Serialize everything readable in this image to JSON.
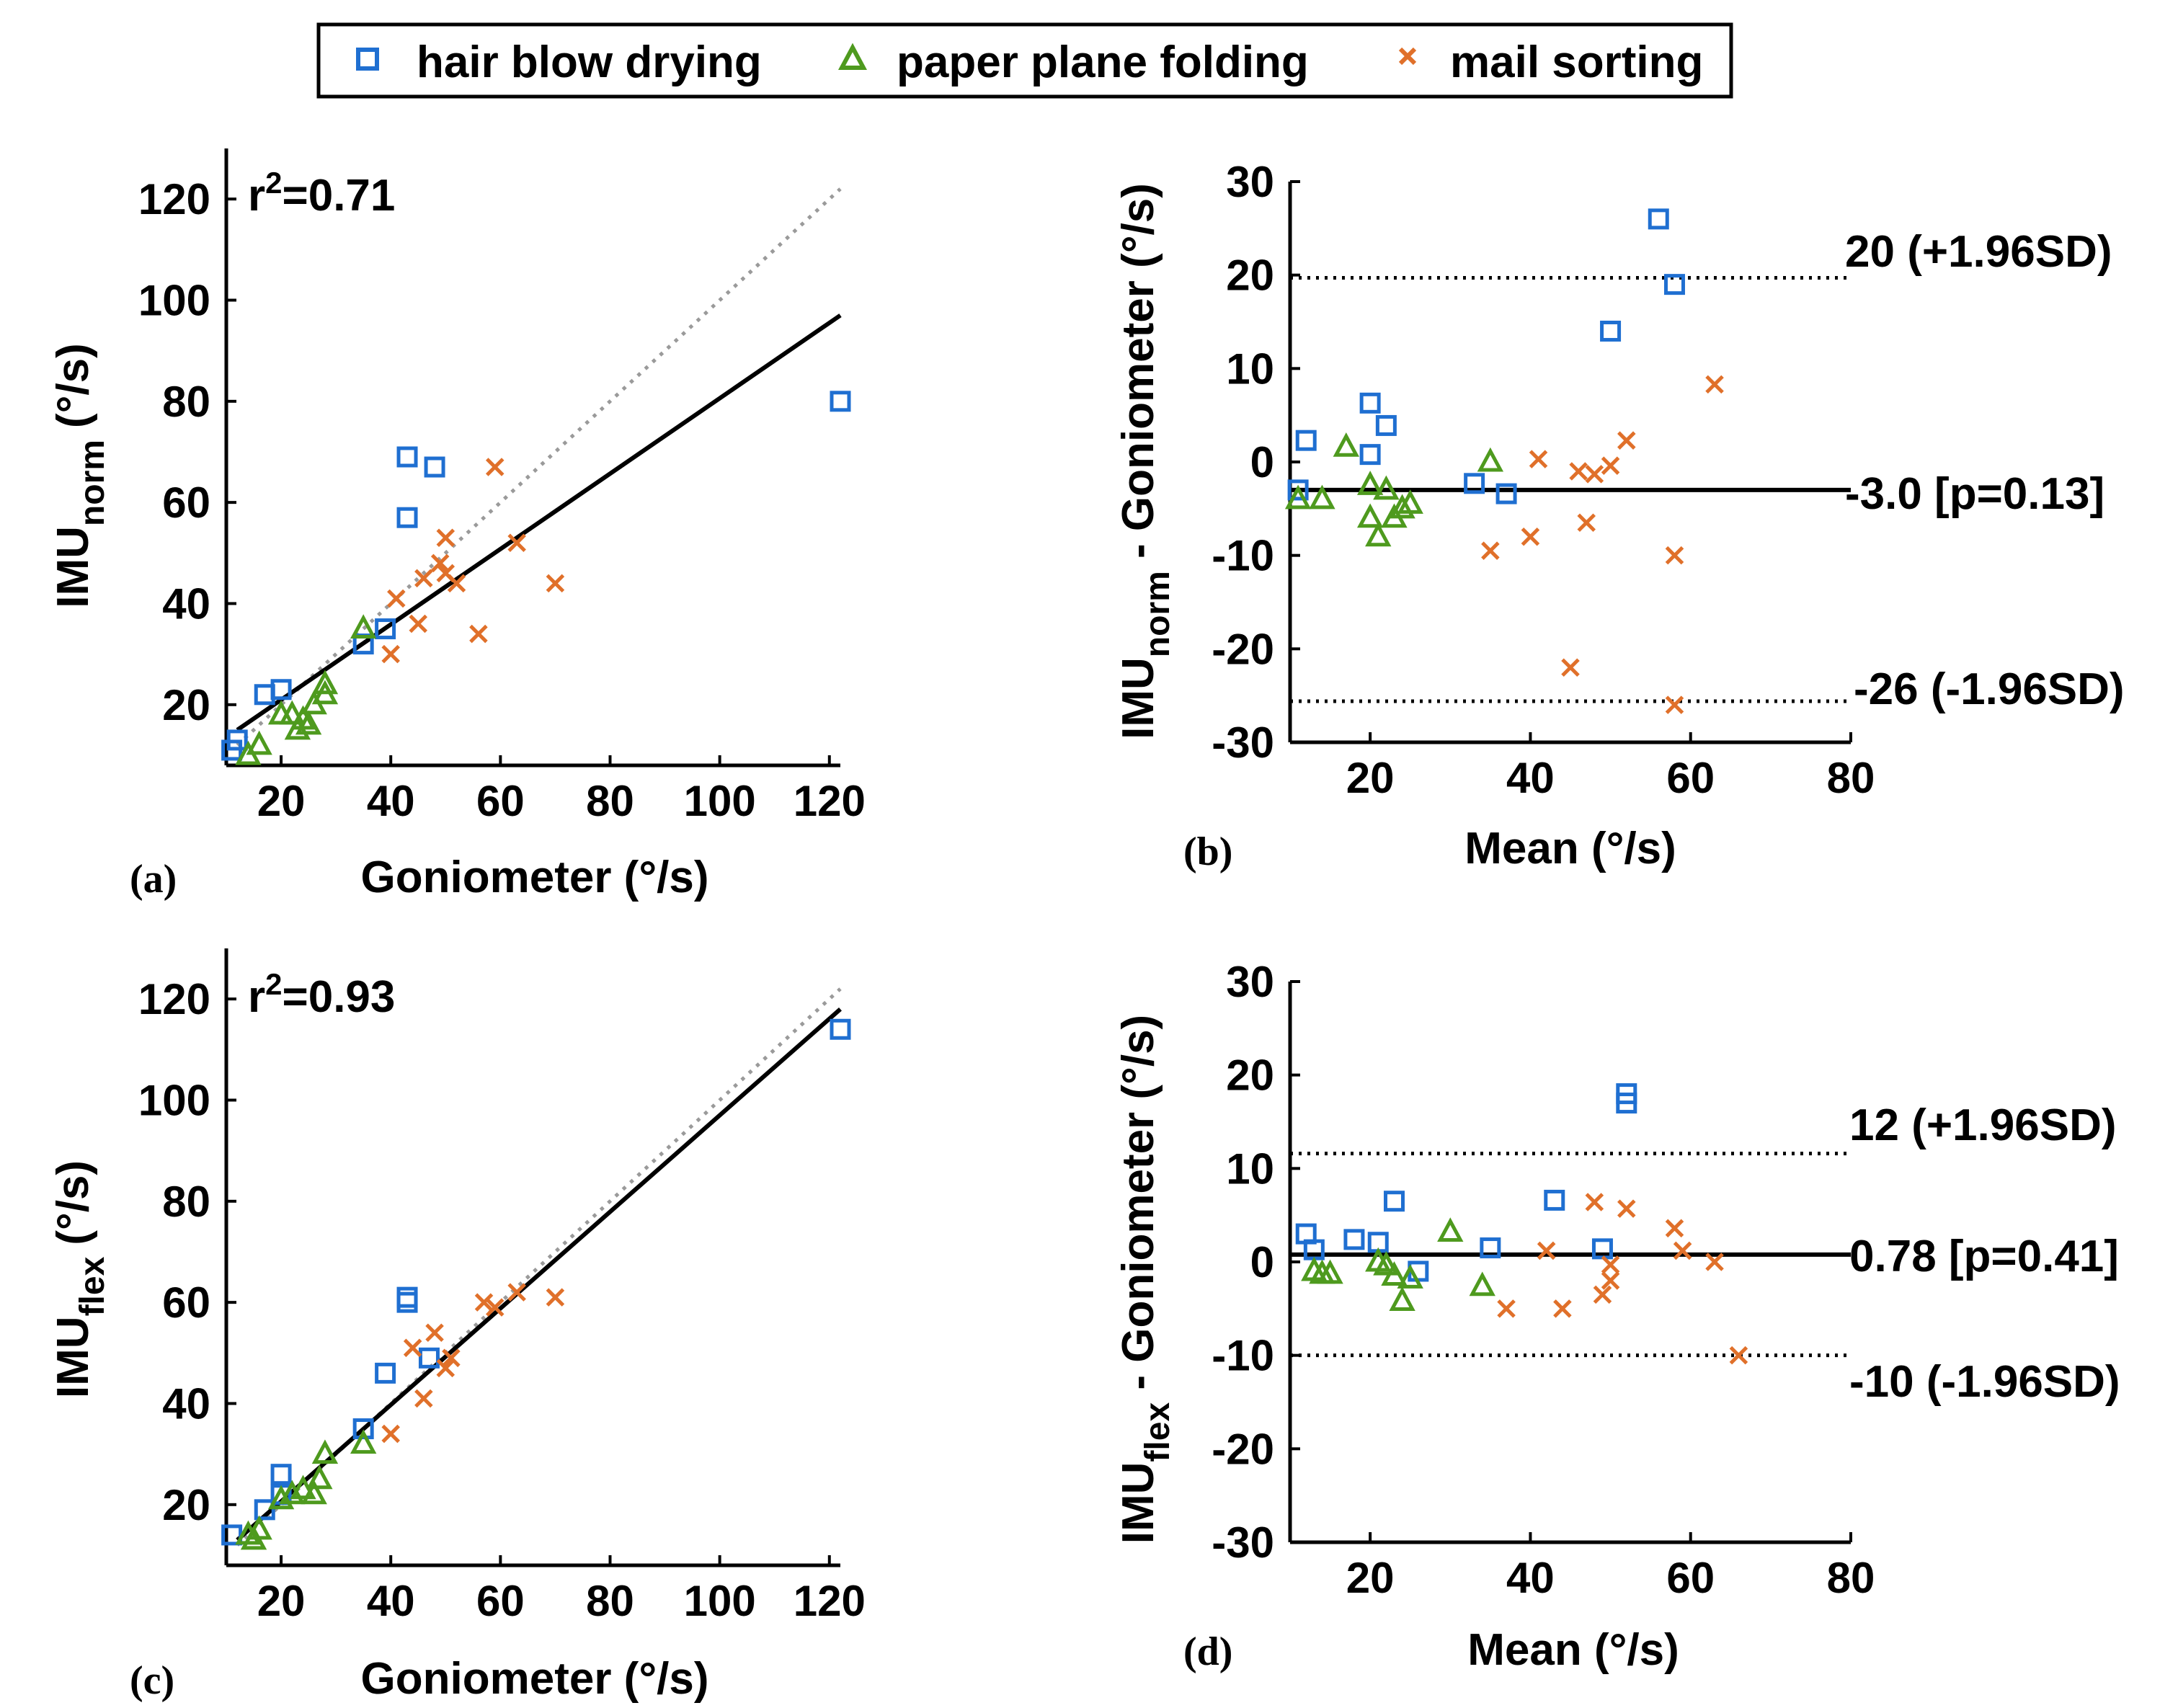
{
  "legend": {
    "entries": [
      {
        "key": "hair",
        "label": "hair blow drying",
        "marker": "square-icon",
        "color": "#1f6fd1"
      },
      {
        "key": "paper",
        "label": "paper plane folding",
        "marker": "triangle-icon",
        "color": "#4e9a1e"
      },
      {
        "key": "mail",
        "label": "mail sorting",
        "marker": "cross-icon",
        "color": "#e0702a"
      }
    ]
  },
  "colors": {
    "hair": "#1f6fd1",
    "paper": "#4e9a1e",
    "mail": "#e0702a",
    "fit": "#000000",
    "identity": "#9a9a9a"
  },
  "chart_data": [
    {
      "id": "a",
      "type": "scatter",
      "panel_label": "(a)",
      "xlabel": "Goniometer (°/s)",
      "ylabel_main": "IMU",
      "ylabel_sub": "norm",
      "ylabel_unit": "(°/s)",
      "xlim": [
        10,
        122
      ],
      "ylim": [
        8,
        130
      ],
      "xticks": [
        20,
        40,
        60,
        80,
        100,
        120
      ],
      "yticks": [
        20,
        40,
        60,
        80,
        100,
        120
      ],
      "annotation": {
        "base": "r",
        "sup": "2",
        "rest": "=0.71"
      },
      "identity_line": [
        [
          12,
          12
        ],
        [
          122,
          122
        ]
      ],
      "fit_line": [
        [
          12,
          15
        ],
        [
          122,
          97
        ]
      ],
      "series": [
        {
          "key": "hair",
          "points": [
            [
              12,
              13
            ],
            [
              11,
              11
            ],
            [
              17,
              22
            ],
            [
              20,
              23
            ],
            [
              35,
              32
            ],
            [
              39,
              35
            ],
            [
              43,
              69
            ],
            [
              43,
              57
            ],
            [
              48,
              67
            ],
            [
              122,
              80
            ]
          ]
        },
        {
          "key": "paper",
          "points": [
            [
              14,
              10
            ],
            [
              16,
              12
            ],
            [
              22,
              18
            ],
            [
              24,
              17
            ],
            [
              26,
              20
            ],
            [
              25,
              16
            ],
            [
              28,
              22
            ],
            [
              35,
              35
            ],
            [
              28,
              24
            ],
            [
              20,
              18
            ],
            [
              23,
              15
            ]
          ]
        },
        {
          "key": "mail",
          "points": [
            [
              40,
              30
            ],
            [
              41,
              41
            ],
            [
              45,
              36
            ],
            [
              46,
              45
            ],
            [
              49,
              48
            ],
            [
              50,
              53
            ],
            [
              50,
              46
            ],
            [
              56,
              34
            ],
            [
              59,
              67
            ],
            [
              63,
              52
            ],
            [
              70,
              44
            ],
            [
              52,
              44
            ]
          ]
        }
      ]
    },
    {
      "id": "b",
      "type": "scatter",
      "panel_label": "(b)",
      "xlabel": "Mean (°/s)",
      "ylabel_main": "IMU",
      "ylabel_sub": "norm",
      "ylabel_rest": " - Goniometer (°/s)",
      "xlim": [
        10,
        80
      ],
      "ylim": [
        -30,
        30
      ],
      "xticks": [
        20,
        40,
        60,
        80
      ],
      "yticks": [
        -30,
        -20,
        -10,
        0,
        10,
        20,
        30
      ],
      "mean_line": {
        "y": -3.0,
        "label": "-3.0 [p=0.13]"
      },
      "upper_loa": {
        "y": 19.7,
        "label": "20 (+1.96SD)"
      },
      "lower_loa": {
        "y": -25.6,
        "label": "-26 (-1.96SD)"
      },
      "series": [
        {
          "key": "hair",
          "points": [
            [
              11,
              -3
            ],
            [
              12,
              2.3
            ],
            [
              20,
              6.3
            ],
            [
              20,
              0.8
            ],
            [
              22,
              3.9
            ],
            [
              33,
              -2.3
            ],
            [
              37,
              -3.4
            ],
            [
              50,
              14
            ],
            [
              56,
              26
            ],
            [
              58,
              19
            ]
          ]
        },
        {
          "key": "paper",
          "points": [
            [
              11,
              -4
            ],
            [
              14,
              -4
            ],
            [
              17,
              1.6
            ],
            [
              20,
              -2.5
            ],
            [
              20,
              -6
            ],
            [
              21,
              -8
            ],
            [
              22,
              -3
            ],
            [
              23,
              -6
            ],
            [
              24,
              -5
            ],
            [
              25,
              -4.5
            ],
            [
              35,
              0
            ]
          ]
        },
        {
          "key": "mail",
          "points": [
            [
              35,
              -9.5
            ],
            [
              40,
              -8
            ],
            [
              41,
              0.3
            ],
            [
              45,
              -22
            ],
            [
              46,
              -1
            ],
            [
              47,
              -6.5
            ],
            [
              48,
              -1.3
            ],
            [
              50,
              -0.4
            ],
            [
              52,
              2.3
            ],
            [
              58,
              -10
            ],
            [
              58,
              -26
            ],
            [
              63,
              8.3
            ]
          ]
        }
      ]
    },
    {
      "id": "c",
      "type": "scatter",
      "panel_label": "(c)",
      "xlabel": "Goniometer (°/s)",
      "ylabel_main": "IMU",
      "ylabel_sub": "flex",
      "ylabel_unit": "(°/s)",
      "xlim": [
        10,
        122
      ],
      "ylim": [
        8,
        130
      ],
      "xticks": [
        20,
        40,
        60,
        80,
        100,
        120
      ],
      "yticks": [
        20,
        40,
        60,
        80,
        100,
        120
      ],
      "annotation": {
        "base": "r",
        "sup": "2",
        "rest": "=0.93"
      },
      "identity_line": [
        [
          12,
          12
        ],
        [
          122,
          122
        ]
      ],
      "fit_line": [
        [
          12,
          13
        ],
        [
          122,
          118
        ]
      ],
      "series": [
        {
          "key": "hair",
          "points": [
            [
              11,
              14
            ],
            [
              17,
              19
            ],
            [
              20,
              26
            ],
            [
              20,
              22
            ],
            [
              35,
              35
            ],
            [
              39,
              46
            ],
            [
              43,
              61
            ],
            [
              43,
              60
            ],
            [
              47,
              49
            ],
            [
              122,
              114
            ]
          ]
        },
        {
          "key": "paper",
          "points": [
            [
              14,
              14
            ],
            [
              16,
              15
            ],
            [
              22,
              22
            ],
            [
              24,
              23
            ],
            [
              26,
              22
            ],
            [
              27,
              25
            ],
            [
              28,
              30
            ],
            [
              35,
              32
            ],
            [
              20,
              21
            ],
            [
              15,
              13
            ]
          ]
        },
        {
          "key": "mail",
          "points": [
            [
              40,
              34
            ],
            [
              44,
              51
            ],
            [
              46,
              41
            ],
            [
              48,
              54
            ],
            [
              50,
              47
            ],
            [
              51,
              49
            ],
            [
              57,
              60
            ],
            [
              59,
              59
            ],
            [
              63,
              62
            ],
            [
              70,
              61
            ]
          ]
        }
      ]
    },
    {
      "id": "d",
      "type": "scatter",
      "panel_label": "(d)",
      "xlabel": "Mean (°/s)",
      "ylabel_main": "IMU",
      "ylabel_sub": "flex",
      "ylabel_rest": " - Goniometer (°/s)",
      "xlim": [
        10,
        80
      ],
      "ylim": [
        -30,
        30
      ],
      "xticks": [
        20,
        40,
        60,
        80
      ],
      "yticks": [
        -30,
        -20,
        -10,
        0,
        10,
        20,
        30
      ],
      "mean_line": {
        "y": 0.78,
        "label": "0.78 [p=0.41]"
      },
      "upper_loa": {
        "y": 11.6,
        "label": "12 (+1.96SD)"
      },
      "lower_loa": {
        "y": -10,
        "label": "-10 (-1.96SD)"
      },
      "series": [
        {
          "key": "hair",
          "points": [
            [
              12,
              3
            ],
            [
              13,
              1.3
            ],
            [
              18,
              2.4
            ],
            [
              21,
              2.1
            ],
            [
              23,
              6.5
            ],
            [
              26,
              -1
            ],
            [
              35,
              1.5
            ],
            [
              43,
              6.6
            ],
            [
              49,
              1.4
            ],
            [
              52,
              17
            ],
            [
              52,
              18
            ]
          ]
        },
        {
          "key": "paper",
          "points": [
            [
              13,
              -1
            ],
            [
              14,
              -1.3
            ],
            [
              15,
              -1.3
            ],
            [
              21,
              0
            ],
            [
              22,
              -0.4
            ],
            [
              23,
              -1.5
            ],
            [
              24,
              -4.2
            ],
            [
              25,
              -1.8
            ],
            [
              30,
              3.2
            ],
            [
              34,
              -2.6
            ]
          ]
        },
        {
          "key": "mail",
          "points": [
            [
              37,
              -5
            ],
            [
              42,
              1.2
            ],
            [
              44,
              -5
            ],
            [
              48,
              6.4
            ],
            [
              49,
              -3.5
            ],
            [
              50,
              -2
            ],
            [
              50,
              -0.3
            ],
            [
              52,
              5.7
            ],
            [
              58,
              3.6
            ],
            [
              59,
              1.2
            ],
            [
              63,
              0
            ],
            [
              66,
              -10
            ]
          ]
        }
      ]
    }
  ]
}
